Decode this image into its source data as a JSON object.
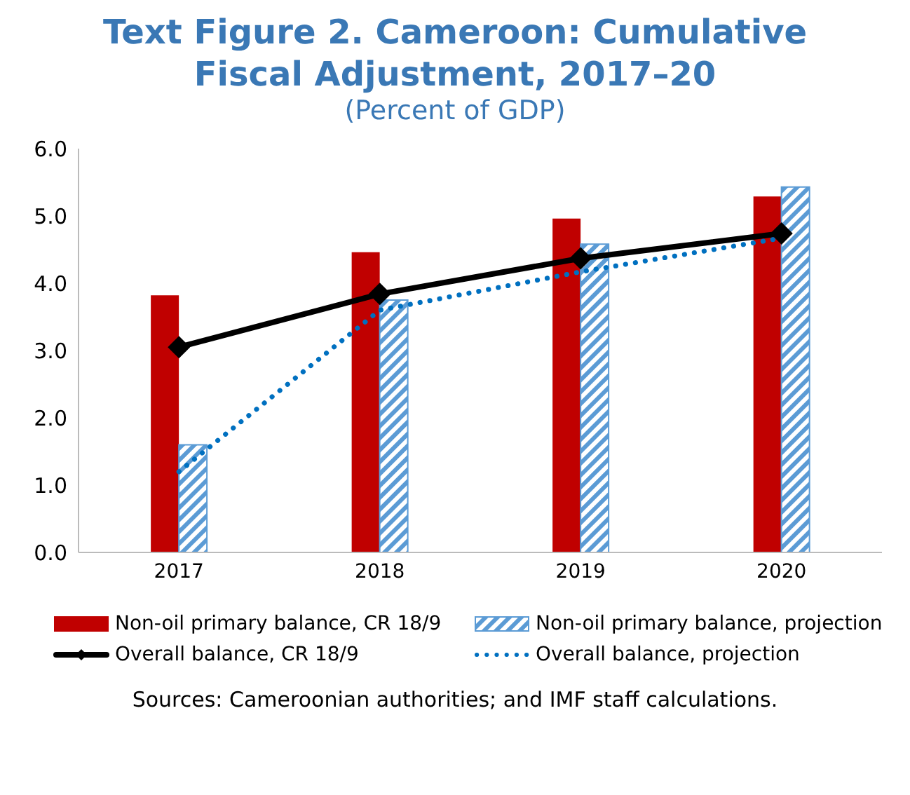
{
  "chart_data": {
    "type": "bar",
    "title": "Text Figure 2. Cameroon: Cumulative Fiscal Adjustment, 2017–20",
    "subtitle": "(Percent of GDP)",
    "categories": [
      "2017",
      "2018",
      "2019",
      "2020"
    ],
    "series": [
      {
        "name": "Non-oil primary balance, CR 18/9",
        "color": "#c00000",
        "values": [
          3.82,
          4.46,
          4.96,
          5.29
        ]
      },
      {
        "name": "Non-oil primary balance, projection",
        "color": "#5b9bd5",
        "values": [
          1.6,
          3.75,
          4.58,
          5.43
        ]
      },
      {
        "name": "Overall balance, CR 18/9",
        "type": "line",
        "color": "#000000",
        "marker": "diamond",
        "line_style": "solid",
        "values": [
          3.05,
          3.84,
          4.37,
          4.74
        ]
      },
      {
        "name": "Overall balance, projection",
        "type": "line",
        "color": "#0070c0",
        "marker": "none",
        "line_style": "dotted",
        "values": [
          1.2,
          3.6,
          4.17,
          4.67
        ]
      }
    ],
    "ylim": [
      0,
      6
    ],
    "yticks": [
      {
        "value": 0,
        "label": "0.0"
      },
      {
        "value": 1,
        "label": "1.0"
      },
      {
        "value": 2,
        "label": "2.0"
      },
      {
        "value": 3,
        "label": "3.0"
      },
      {
        "value": 4,
        "label": "4.0"
      },
      {
        "value": 5,
        "label": "5.0"
      },
      {
        "value": 6,
        "label": "6.0"
      }
    ],
    "grid": false,
    "legend": "bottom",
    "annotations": [
      "Sources: Cameroonian authorities; and IMF staff calculations."
    ]
  }
}
